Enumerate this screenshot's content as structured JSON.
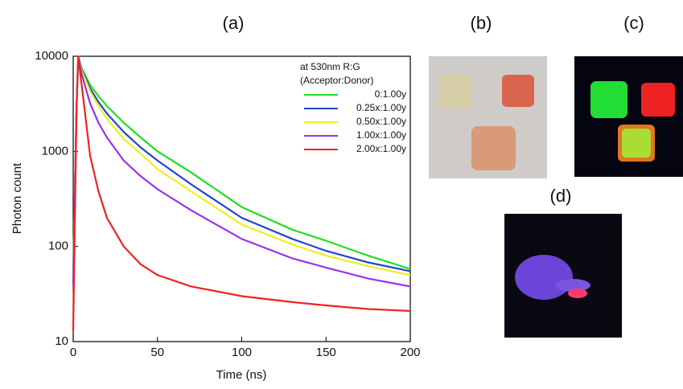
{
  "chart_data": {
    "type": "line",
    "x_label": "Time (ns)",
    "y_label": "Photon count",
    "legend_title": [
      "at 530nm R:G",
      "(Acceptor:Donor)"
    ],
    "panel_labels": [
      "(a)",
      "(b)",
      "(c)",
      "(d)"
    ],
    "log_y": true,
    "xlim": [
      0,
      200
    ],
    "xticks": [
      0,
      50,
      100,
      150,
      200
    ],
    "ylim": [
      10,
      10000
    ],
    "yticks": [
      10,
      100,
      1000,
      10000
    ],
    "x": [
      0,
      2,
      3,
      5,
      10,
      15,
      20,
      30,
      40,
      50,
      70,
      100,
      130,
      150,
      175,
      200
    ],
    "series": [
      {
        "name": "0:1.00y",
        "color": "#22dd22",
        "values": [
          50,
          3000,
          10000,
          7500,
          5000,
          3800,
          3000,
          2000,
          1400,
          1000,
          600,
          260,
          150,
          115,
          80,
          58
        ]
      },
      {
        "name": "0.25x:1.00y",
        "color": "#2244cc",
        "values": [
          45,
          3000,
          10000,
          7200,
          4600,
          3300,
          2500,
          1600,
          1100,
          800,
          450,
          200,
          120,
          90,
          68,
          55
        ]
      },
      {
        "name": "0.50x:1.00y",
        "color": "#eeee22",
        "values": [
          45,
          3000,
          10000,
          7000,
          4300,
          3000,
          2200,
          1350,
          950,
          650,
          380,
          170,
          105,
          80,
          62,
          50
        ]
      },
      {
        "name": "1.00x:1.00y",
        "color": "#9933ee",
        "values": [
          40,
          3000,
          10000,
          6500,
          3200,
          2000,
          1400,
          800,
          550,
          400,
          240,
          120,
          75,
          60,
          46,
          38
        ]
      },
      {
        "name": "2.00x:1.00y",
        "color": "#ee2222",
        "values": [
          13,
          3000,
          10000,
          5000,
          900,
          380,
          200,
          100,
          65,
          50,
          38,
          30,
          26,
          24,
          22,
          21
        ]
      }
    ]
  }
}
